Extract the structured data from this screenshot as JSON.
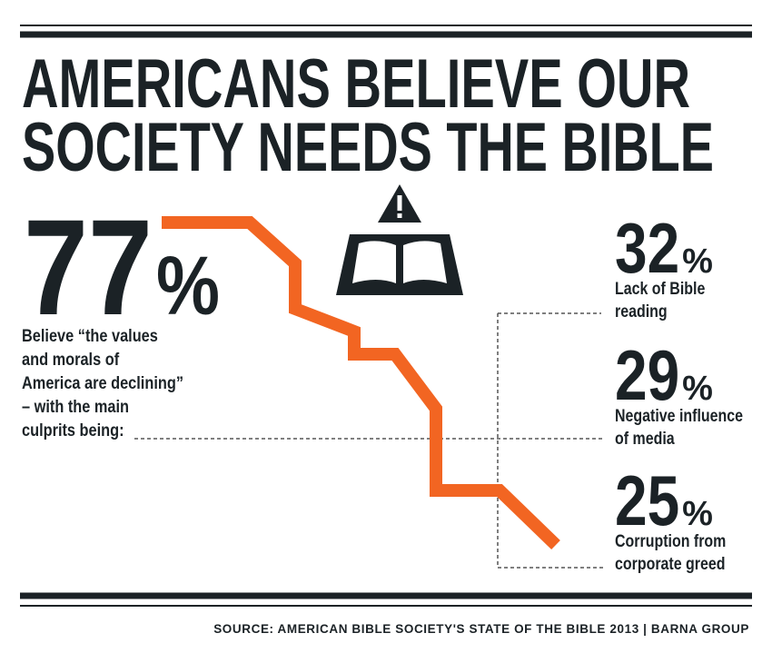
{
  "header": {
    "title_lines": [
      "AMERICANS BELIEVE OUR",
      "SOCIETY NEEDS THE BIBLE"
    ]
  },
  "main_stat": {
    "number": 77,
    "unit": "%",
    "description_lines": [
      "Believe “the values",
      "and morals of",
      "America are declining”",
      "– with the main",
      "culprits being:"
    ]
  },
  "culprits": [
    {
      "number": 32,
      "unit": "%",
      "label_lines": [
        "Lack of Bible",
        "reading"
      ]
    },
    {
      "number": 29,
      "unit": "%",
      "label_lines": [
        "Negative influence",
        "of media"
      ]
    },
    {
      "number": 25,
      "unit": "%",
      "label_lines": [
        "Corruption from",
        "corporate greed"
      ]
    }
  ],
  "source": "SOURCE: AMERICAN BIBLE SOCIETY'S STATE OF THE BIBLE 2013 | BARNA GROUP"
}
